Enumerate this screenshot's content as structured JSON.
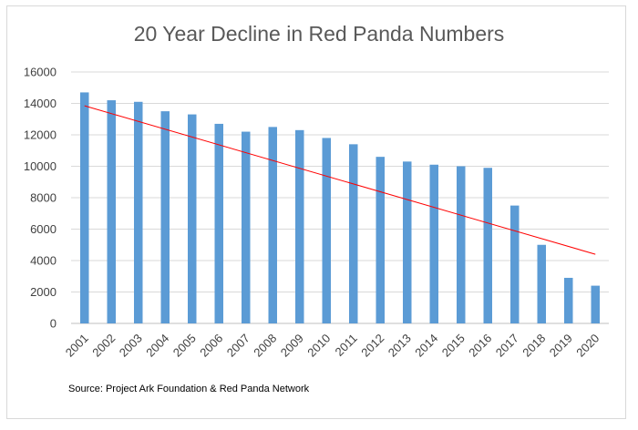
{
  "chart_data": {
    "type": "bar",
    "title": "20 Year Decline in Red Panda Numbers",
    "source": "Source: Project Ark Foundation & Red Panda Network",
    "categories": [
      "2001",
      "2002",
      "2003",
      "2004",
      "2005",
      "2006",
      "2007",
      "2008",
      "2009",
      "2010",
      "2011",
      "2012",
      "2013",
      "2014",
      "2015",
      "2016",
      "2017",
      "2018",
      "2019",
      "2020"
    ],
    "values": [
      14700,
      14200,
      14100,
      13500,
      13300,
      12700,
      12200,
      12500,
      12300,
      11800,
      11400,
      10600,
      10300,
      10100,
      10000,
      9900,
      7500,
      5000,
      2900,
      2400
    ],
    "y_ticks": [
      "0",
      "2000",
      "4000",
      "6000",
      "8000",
      "10000",
      "12000",
      "14000",
      "16000"
    ],
    "ylim": [
      0,
      16000
    ],
    "trendline": {
      "type": "linear",
      "start": 13850,
      "end": 4400
    },
    "grid": true,
    "colors": {
      "bar": "#5b9bd5",
      "trendline": "#ff0000",
      "grid": "#d9d9d9",
      "axis": "#bfbfbf"
    }
  }
}
